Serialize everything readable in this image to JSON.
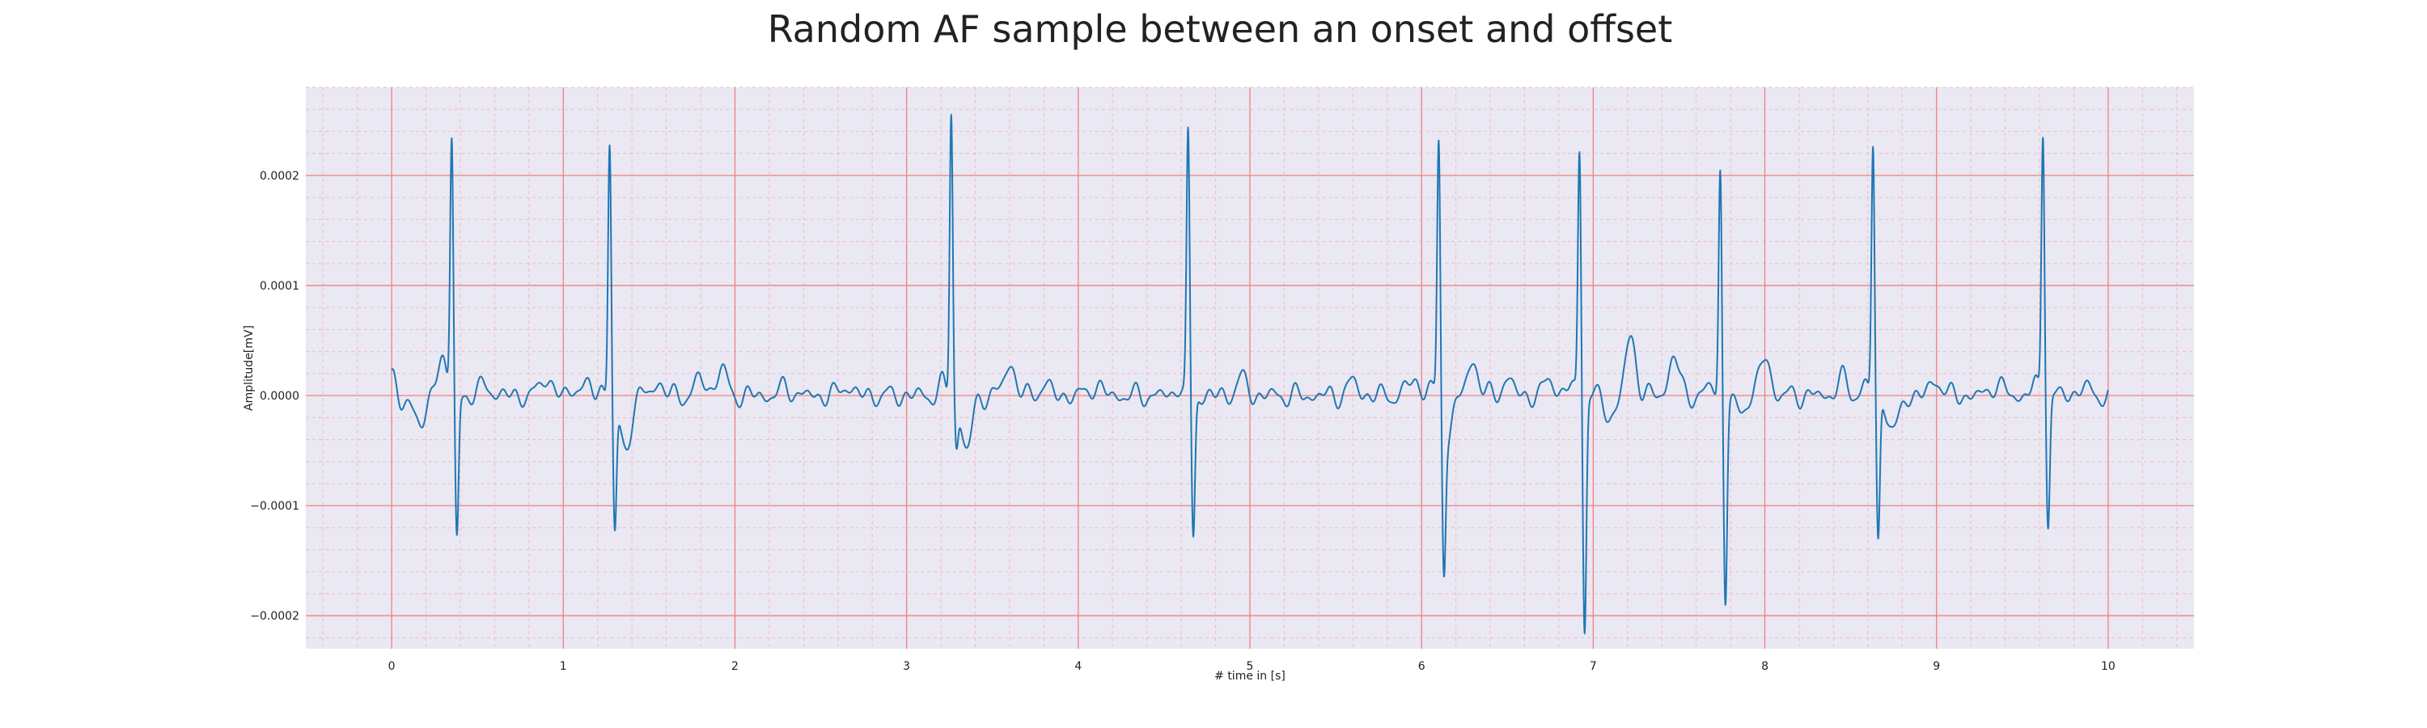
{
  "chart_data": {
    "type": "line",
    "title": "Random AF sample between an onset and offset",
    "xlabel": "# time in [s]",
    "ylabel": "Amplitude[mV]",
    "xlim": [
      -0.5,
      10.5
    ],
    "ylim": [
      -0.00023,
      0.00028
    ],
    "x_ticks": [
      0,
      1,
      2,
      3,
      4,
      5,
      6,
      7,
      8,
      9,
      10
    ],
    "y_ticks": [
      -0.0002,
      -0.0001,
      0.0,
      0.0001,
      0.0002
    ],
    "x_tick_labels": [
      "0",
      "1",
      "2",
      "3",
      "4",
      "5",
      "6",
      "7",
      "8",
      "9",
      "10"
    ],
    "y_tick_labels": [
      "−0.0002",
      "−0.0001",
      "0.0000",
      "0.0001",
      "0.0002"
    ],
    "grid": true,
    "minor_grid": true,
    "colors": {
      "line": "#1f77b4",
      "major_grid": "#f08080",
      "minor_grid": "#f4b8c8",
      "background": "#eae8f2"
    },
    "series": [
      {
        "x_start": 0,
        "x_end": 10,
        "beats": [
          {
            "t": 0.35,
            "r": 0.00023,
            "s": -0.00013
          },
          {
            "t": 1.27,
            "r": 0.00023,
            "s": -0.00012
          },
          {
            "t": 3.26,
            "r": 0.00026,
            "s": -4e-05
          },
          {
            "t": 4.64,
            "r": 0.000235,
            "s": -0.00013
          },
          {
            "t": 6.1,
            "r": 0.000235,
            "s": -0.00013
          },
          {
            "t": 6.92,
            "r": 0.000225,
            "s": -0.00021
          },
          {
            "t": 7.74,
            "r": 0.000205,
            "s": -0.000185
          },
          {
            "t": 8.63,
            "r": 0.000228,
            "s": -0.000135
          },
          {
            "t": 9.62,
            "r": 0.000242,
            "s": -0.000115
          }
        ],
        "waves": [
          {
            "t": 0.05,
            "a": -1.5e-05
          },
          {
            "t": 0.18,
            "a": -3e-05
          },
          {
            "t": 0.28,
            "a": 3e-05
          },
          {
            "t": 0.55,
            "a": 1e-05
          },
          {
            "t": 0.9,
            "a": 1.8e-05
          },
          {
            "t": 1.1,
            "a": 1.2e-05
          },
          {
            "t": 1.36,
            "a": -5e-05
          },
          {
            "t": 1.55,
            "a": 1.2e-05
          },
          {
            "t": 1.8,
            "a": 1.5e-05
          },
          {
            "t": 1.92,
            "a": 2.4e-05
          },
          {
            "t": 2.3,
            "a": 8e-06
          },
          {
            "t": 2.65,
            "a": 1e-05
          },
          {
            "t": 3.35,
            "a": -5e-05
          },
          {
            "t": 3.6,
            "a": 3e-05
          },
          {
            "t": 3.8,
            "a": 1e-05
          },
          {
            "t": 4.1,
            "a": 1e-05
          },
          {
            "t": 4.95,
            "a": 1.5e-05
          },
          {
            "t": 5.6,
            "a": 1.2e-05
          },
          {
            "t": 5.95,
            "a": 1.5e-05
          },
          {
            "t": 6.15,
            "a": -3.5e-05
          },
          {
            "t": 6.3,
            "a": 3.2e-05
          },
          {
            "t": 6.5,
            "a": 1.5e-05
          },
          {
            "t": 6.75,
            "a": 1.5e-05
          },
          {
            "t": 7.1,
            "a": -2e-05
          },
          {
            "t": 7.22,
            "a": 5.2e-05
          },
          {
            "t": 7.47,
            "a": 3.5e-05
          },
          {
            "t": 7.85,
            "a": -1.5e-05
          },
          {
            "t": 8.0,
            "a": 3.5e-05
          },
          {
            "t": 8.45,
            "a": 1.5e-05
          },
          {
            "t": 8.75,
            "a": -3.5e-05
          },
          {
            "t": 9.0,
            "a": 1.5e-05
          },
          {
            "t": 9.35,
            "a": 1.2e-05
          },
          {
            "t": 9.85,
            "a": 8e-06
          }
        ]
      }
    ]
  }
}
